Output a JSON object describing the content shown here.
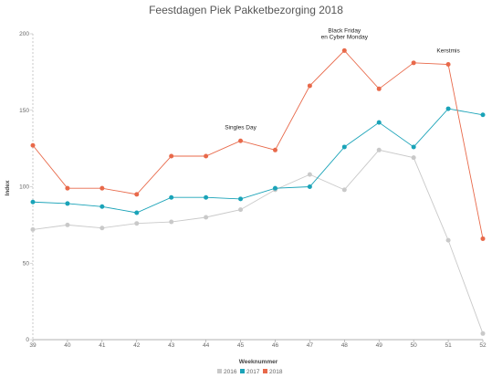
{
  "chart_data": {
    "type": "line",
    "title": "Feestdagen Piek Pakketbezorging 2018",
    "xlabel": "Weeknummer",
    "ylabel": "Index",
    "x": [
      39,
      40,
      41,
      42,
      43,
      44,
      45,
      46,
      47,
      48,
      49,
      50,
      51,
      52
    ],
    "ylim": [
      0,
      200
    ],
    "yticks": [
      0,
      50,
      100,
      150,
      200
    ],
    "grid": false,
    "legend": "bottom",
    "series": [
      {
        "name": "2016",
        "color": "#c9c9c9",
        "values": [
          72,
          75,
          73,
          76,
          77,
          80,
          85,
          98,
          108,
          98,
          124,
          119,
          65,
          4
        ]
      },
      {
        "name": "2017",
        "color": "#1aa3b8",
        "values": [
          90,
          89,
          87,
          83,
          93,
          93,
          92,
          99,
          100,
          126,
          142,
          126,
          151,
          147
        ]
      },
      {
        "name": "2018",
        "color": "#e8694a",
        "values": [
          127,
          99,
          99,
          95,
          120,
          120,
          130,
          124,
          166,
          189,
          164,
          181,
          180,
          66
        ]
      }
    ],
    "annotations": [
      {
        "x": 45,
        "lines": [
          "Singles Day"
        ]
      },
      {
        "x": 48,
        "lines": [
          "Black Friday",
          "en Cyber Monday"
        ]
      },
      {
        "x": 51,
        "lines": [
          "Kerstmis"
        ]
      }
    ]
  }
}
